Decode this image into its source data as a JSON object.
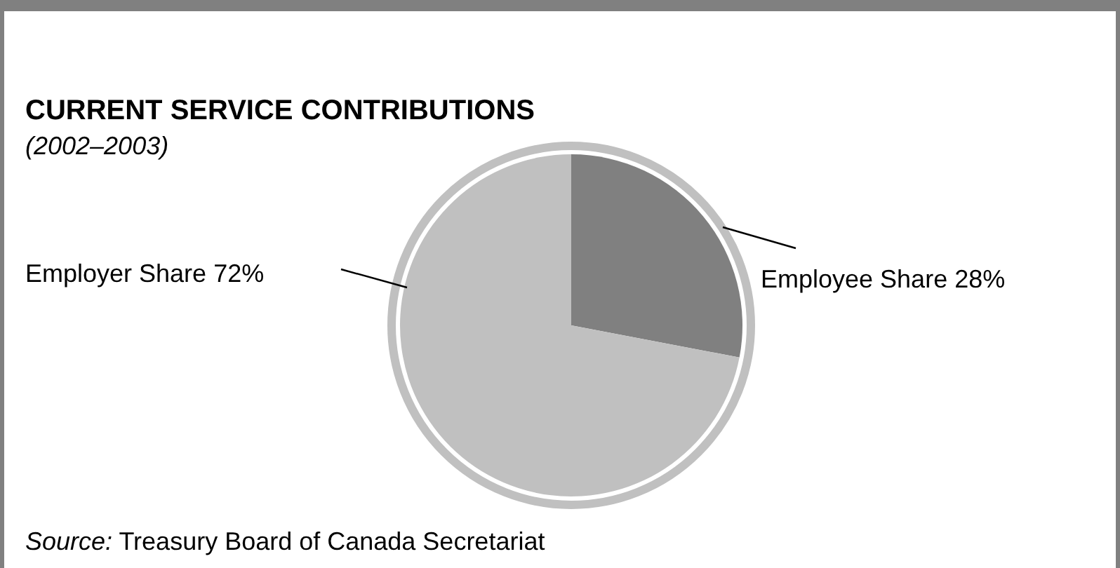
{
  "chart_data": {
    "type": "pie",
    "title": "CURRENT SERVICE CONTRIBUTIONS",
    "subtitle": "(2002–2003)",
    "categories": [
      "Employee Share",
      "Employer Share"
    ],
    "values": [
      28,
      72
    ],
    "colors": [
      "#808080",
      "#c0c0c0"
    ],
    "value_labels": [
      "28%",
      "72%"
    ],
    "annotations": [
      "Source: Treasury Board of Canada Secretariat"
    ]
  }
}
